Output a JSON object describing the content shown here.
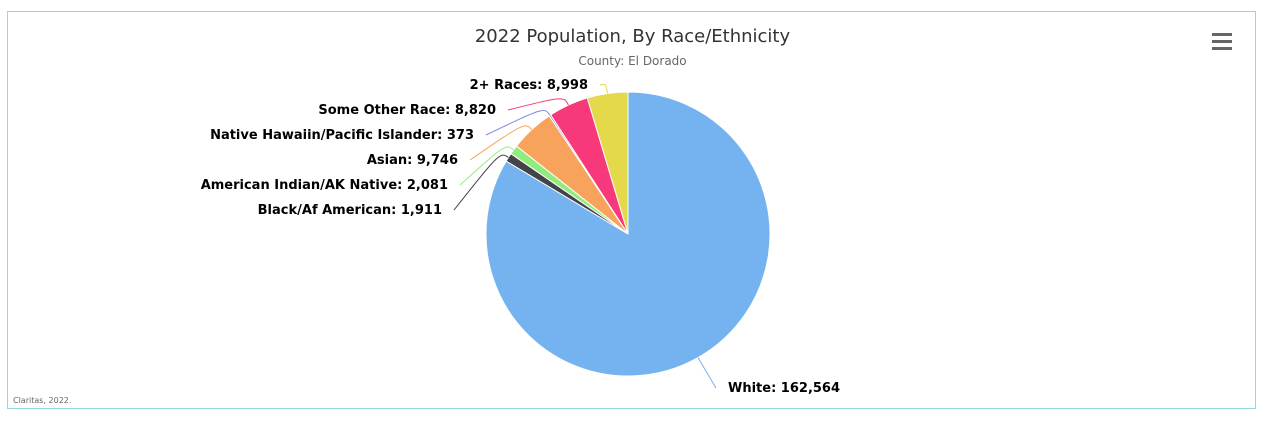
{
  "chart_data": {
    "type": "pie",
    "title": "2022 Population, By Race/Ethnicity",
    "subtitle": "County: El Dorado",
    "credit": "Claritas, 2022.",
    "slices": [
      {
        "name": "White",
        "value": 162564,
        "label": "White: 162,564",
        "color": "#74b3ef"
      },
      {
        "name": "Black/Af American",
        "value": 1911,
        "label": "Black/Af American: 1,911",
        "color": "#434348"
      },
      {
        "name": "American Indian/AK Native",
        "value": 2081,
        "label": "American Indian/AK Native: 2,081",
        "color": "#90ed7d"
      },
      {
        "name": "Asian",
        "value": 9746,
        "label": "Asian: 9,746",
        "color": "#f7a35c"
      },
      {
        "name": "Native Hawaiin/Pacific Islander",
        "value": 373,
        "label": "Native Hawaiin/Pacific Islander: 373",
        "color": "#8085e9"
      },
      {
        "name": "Some Other Race",
        "value": 8820,
        "label": "Some Other Race: 8,820",
        "color": "#f7387a"
      },
      {
        "name": "2+ Races",
        "value": 8998,
        "label": "2+ Races: 8,998",
        "color": "#e4d84b"
      }
    ]
  }
}
